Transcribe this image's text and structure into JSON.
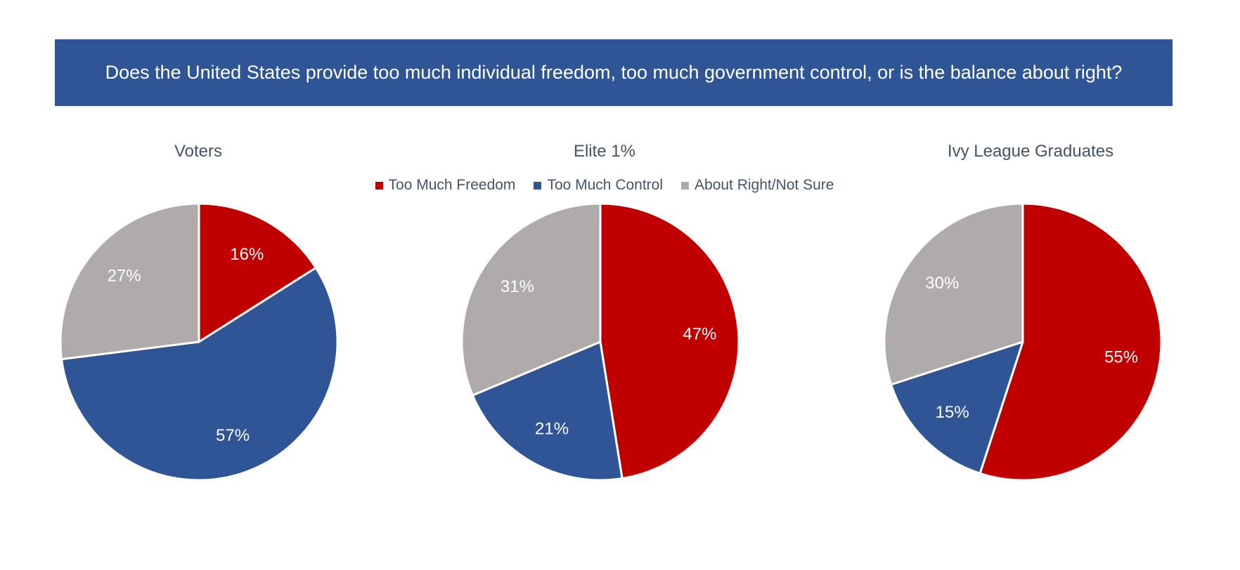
{
  "colors": {
    "banner": "#2F5597",
    "freedom": "#C00000",
    "control": "#2F5597",
    "neutral": "#AFABAB",
    "slice_border": "#ffffff",
    "label_text": "#ffffff"
  },
  "banner": {
    "question": "Does the United States provide too much individual freedom, too much government control, or is the balance about right?"
  },
  "legend": [
    {
      "label": "Too Much Freedom",
      "color_key": "freedom"
    },
    {
      "label": "Too Much Control",
      "color_key": "control"
    },
    {
      "label": "About Right/Not Sure",
      "color_key": "neutral"
    }
  ],
  "chart_data": [
    {
      "type": "pie",
      "title": "Voters",
      "categories": [
        "Too Much Freedom",
        "Too Much Control",
        "About Right/Not Sure"
      ],
      "values": [
        16,
        57,
        27
      ],
      "labels": [
        "16%",
        "57%",
        "27%"
      ]
    },
    {
      "type": "pie",
      "title": "Elite 1%",
      "categories": [
        "Too Much Freedom",
        "Too Much Control",
        "About Right/Not Sure"
      ],
      "values": [
        47,
        21,
        31
      ],
      "labels": [
        "47%",
        "21%",
        "31%"
      ]
    },
    {
      "type": "pie",
      "title": "Ivy League Graduates",
      "categories": [
        "Too Much Freedom",
        "Too Much Control",
        "About Right/Not Sure"
      ],
      "values": [
        55,
        15,
        30
      ],
      "labels": [
        "55%",
        "15%",
        "30%"
      ]
    }
  ]
}
